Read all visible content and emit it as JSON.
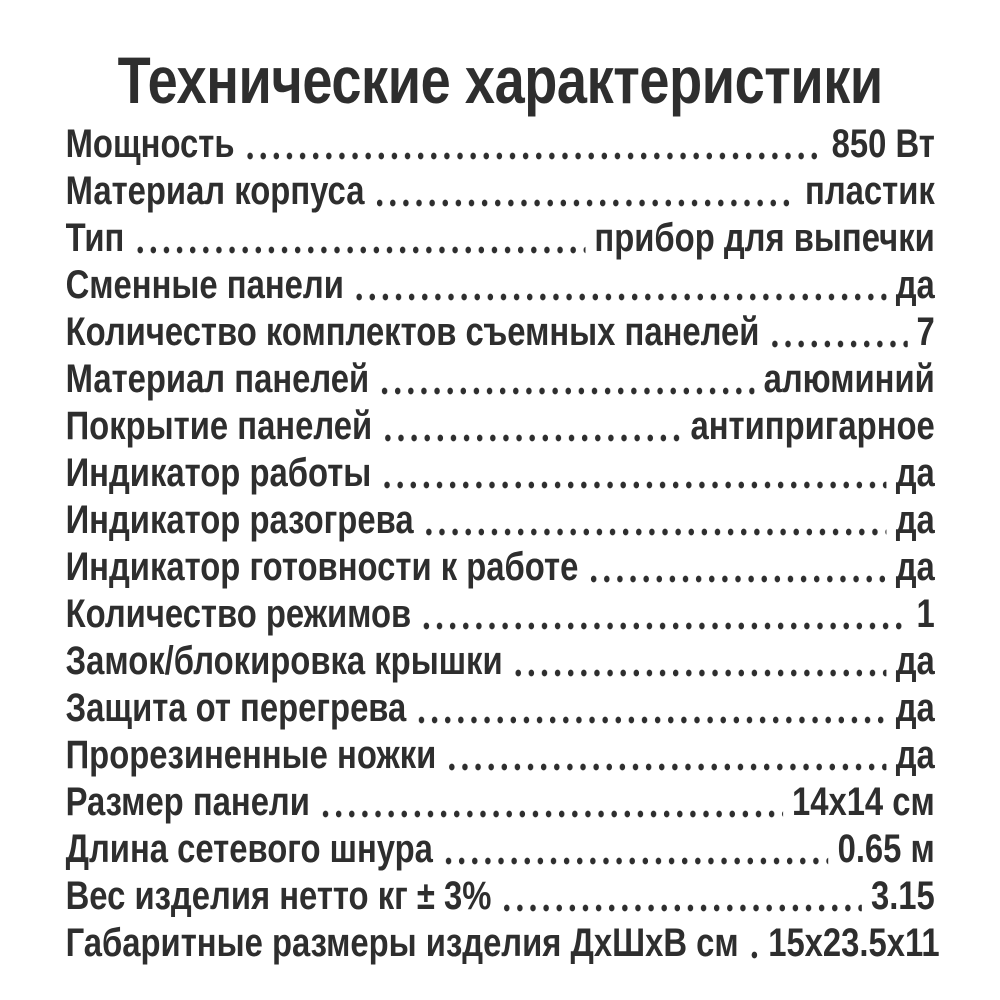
{
  "title": "Технические характеристики",
  "colors": {
    "text": "#2e2e2e",
    "background": "#ffffff"
  },
  "specs": [
    {
      "label": "Мощность",
      "value": "850 Вт"
    },
    {
      "label": "Материал корпуса",
      "value": "пластик"
    },
    {
      "label": "Тип",
      "value": "прибор для выпечки"
    },
    {
      "label": "Сменные панели",
      "value": "да"
    },
    {
      "label": "Количество комплектов съемных панелей",
      "value": "7"
    },
    {
      "label": "Материал панелей",
      "value": "алюминий"
    },
    {
      "label": "Покрытие панелей",
      "value": "антипригарное"
    },
    {
      "label": "Индикатор работы",
      "value": "да"
    },
    {
      "label": "Индикатор разогрева",
      "value": "да"
    },
    {
      "label": "Индикатор готовности к работе",
      "value": "да"
    },
    {
      "label": "Количество режимов",
      "value": "1"
    },
    {
      "label": "Замок/блокировка крышки",
      "value": "да"
    },
    {
      "label": "Защита от перегрева",
      "value": "да"
    },
    {
      "label": "Прорезиненные ножки",
      "value": "да"
    },
    {
      "label": "Размер панели",
      "value": "14х14 см"
    },
    {
      "label": "Длина сетевого шнура",
      "value": "0.65 м"
    },
    {
      "label": "Вес изделия нетто кг ± 3%",
      "value": "3.15"
    },
    {
      "label": "Габаритные размеры изделия ДхШхВ см",
      "value": "15х23.5х11"
    }
  ]
}
